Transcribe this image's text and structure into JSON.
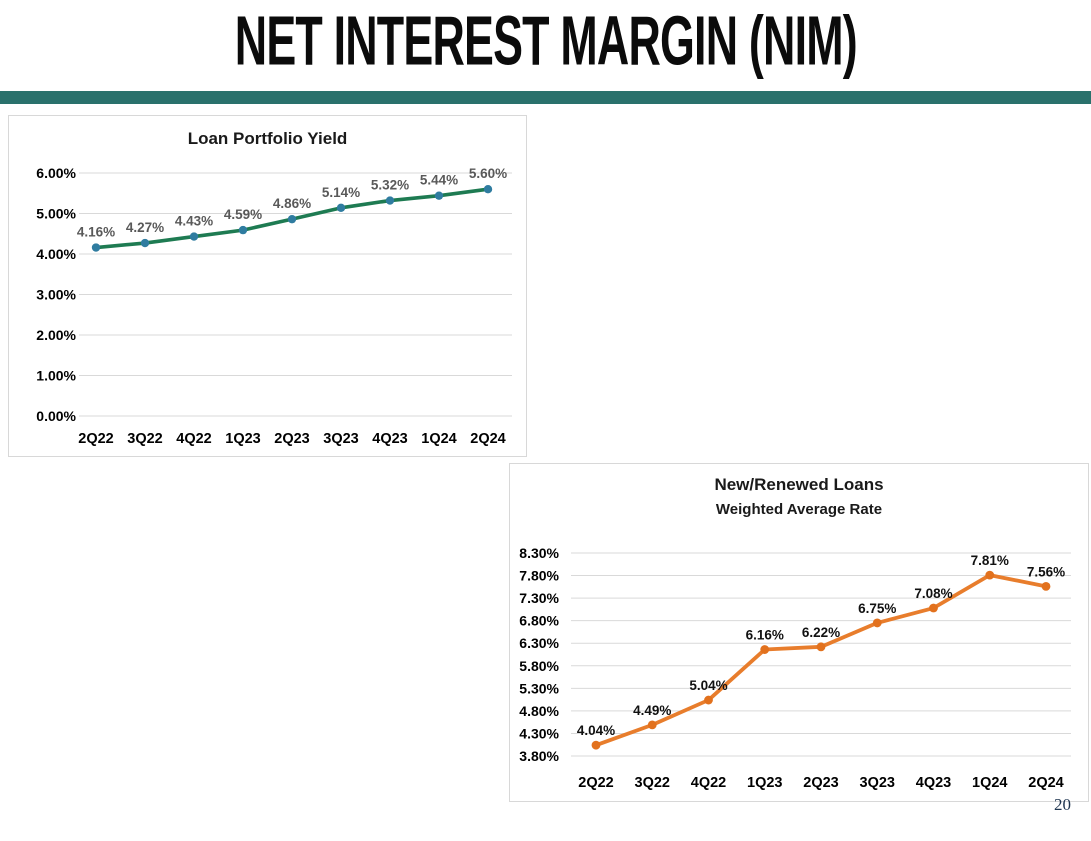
{
  "page": {
    "title": "NET INTEREST MARGIN (NIM)",
    "page_number": "20",
    "accent_color": "#2a716c"
  },
  "chart_data": [
    {
      "type": "line",
      "title": "Loan Portfolio Yield",
      "subtitle": "",
      "categories": [
        "2Q22",
        "3Q22",
        "4Q22",
        "1Q23",
        "2Q23",
        "3Q23",
        "4Q23",
        "1Q24",
        "2Q24"
      ],
      "series": [
        {
          "name": "Loan Portfolio Yield",
          "values": [
            4.16,
            4.27,
            4.43,
            4.59,
            4.86,
            5.14,
            5.32,
            5.44,
            5.6
          ]
        }
      ],
      "data_labels": [
        "4.16%",
        "4.27%",
        "4.43%",
        "4.59%",
        "4.86%",
        "5.14%",
        "5.32%",
        "5.44%",
        "5.60%"
      ],
      "ylim": [
        0,
        6
      ],
      "ystep": 1,
      "y_tick_labels": [
        "0.00%",
        "1.00%",
        "2.00%",
        "3.00%",
        "4.00%",
        "5.00%",
        "6.00%"
      ],
      "grid": true,
      "legend": "none",
      "line_color": "#1e7b52",
      "marker_color": "#2f7ca0",
      "label_color": "#595959",
      "axis_text_color": "#000000",
      "grid_color": "#d9d9d9"
    },
    {
      "type": "line",
      "title": "New/Renewed Loans",
      "subtitle": "Weighted Average Rate",
      "categories": [
        "2Q22",
        "3Q22",
        "4Q22",
        "1Q23",
        "2Q23",
        "3Q23",
        "4Q23",
        "1Q24",
        "2Q24"
      ],
      "series": [
        {
          "name": "New/Renewed Loans Weighted Average Rate",
          "values": [
            4.04,
            4.49,
            5.04,
            6.16,
            6.22,
            6.75,
            7.08,
            7.81,
            7.56
          ]
        }
      ],
      "data_labels": [
        "4.04%",
        "4.49%",
        "5.04%",
        "6.16%",
        "6.22%",
        "6.75%",
        "7.08%",
        "7.81%",
        "7.56%"
      ],
      "ylim": [
        3.8,
        8.3
      ],
      "ystep": 0.5,
      "y_tick_labels": [
        "3.80%",
        "4.30%",
        "4.80%",
        "5.30%",
        "5.80%",
        "6.30%",
        "6.80%",
        "7.30%",
        "7.80%",
        "8.30%"
      ],
      "grid": true,
      "legend": "none",
      "line_color": "#e87d2c",
      "marker_color": "#e2711d",
      "label_color": "#111111",
      "axis_text_color": "#000000",
      "grid_color": "#d9d9d9"
    }
  ]
}
